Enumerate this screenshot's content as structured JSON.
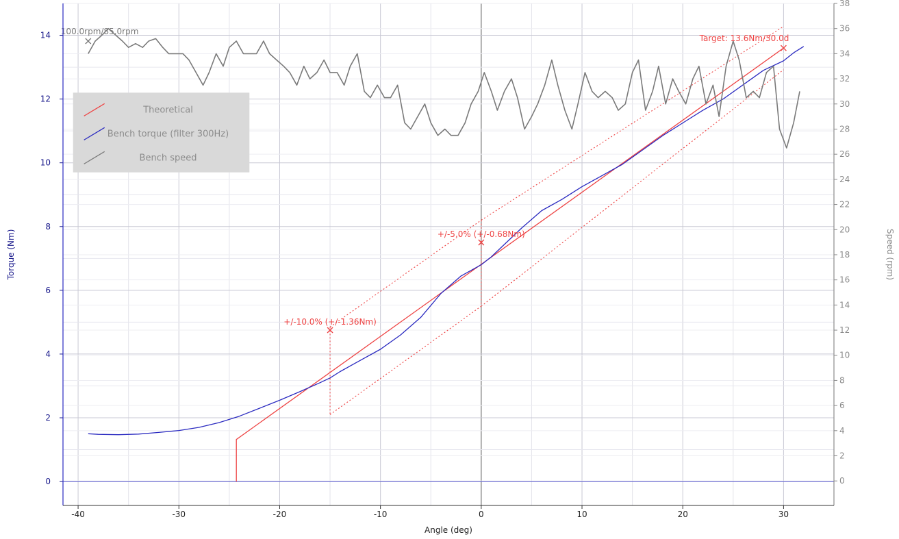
{
  "chart_data": {
    "type": "line",
    "xlabel": "Angle (deg)",
    "ylabel_left": "Torque (Nm)",
    "ylabel_right": "Speed (rpm)",
    "xlim": [
      -41.5,
      35.0
    ],
    "ylim_left": [
      -0.75,
      15.0
    ],
    "ylim_right": [
      -1.95,
      38.0
    ],
    "x_ticks": [
      -40,
      -30,
      -20,
      -10,
      0,
      10,
      20,
      30
    ],
    "y_left_ticks": [
      0,
      2,
      4,
      6,
      8,
      10,
      12,
      14
    ],
    "y_right_ticks": [
      0,
      2,
      4,
      6,
      8,
      10,
      12,
      14,
      16,
      18,
      20,
      22,
      24,
      26,
      28,
      30,
      32,
      34,
      36,
      38
    ],
    "grid": true,
    "legend_position": "top-left",
    "colors": {
      "theoretical": "#ee4444",
      "bench_torque": "#2a2ac0",
      "bench_speed": "#7a7a7a",
      "left_axis": "#1a1a8c",
      "right_axis": "#8a8a8a",
      "grid": "#c8c8d4"
    },
    "series": [
      {
        "name": "Theoretical",
        "axis": "left",
        "x": [
          -24.3,
          -24.3,
          30.0
        ],
        "y": [
          0.0,
          1.32,
          13.6
        ]
      },
      {
        "name": "Bench torque (filter 300Hz)",
        "axis": "left",
        "x": [
          -39.0,
          -38.0,
          -36.0,
          -34.0,
          -32.0,
          -30.0,
          -28.0,
          -26.0,
          -24.0,
          -22.0,
          -20.0,
          -18.0,
          -16.0,
          -15.0,
          -14.0,
          -12.0,
          -10.0,
          -8.0,
          -6.0,
          -4.0,
          -2.0,
          0.0,
          1.0,
          2.0,
          4.0,
          6.0,
          8.0,
          10.0,
          12.0,
          14.0,
          16.0,
          18.0,
          20.0,
          22.0,
          24.0,
          26.0,
          28.0,
          30.0,
          31.0,
          32.0
        ],
        "y": [
          1.5,
          1.48,
          1.47,
          1.49,
          1.54,
          1.6,
          1.7,
          1.85,
          2.05,
          2.3,
          2.55,
          2.82,
          3.1,
          3.25,
          3.45,
          3.8,
          4.15,
          4.6,
          5.15,
          5.9,
          6.45,
          6.8,
          7.05,
          7.35,
          7.95,
          8.5,
          8.85,
          9.25,
          9.6,
          9.95,
          10.4,
          10.85,
          11.25,
          11.65,
          12.0,
          12.45,
          12.9,
          13.2,
          13.45,
          13.65
        ]
      },
      {
        "name": "Bench speed",
        "axis": "right",
        "x": [
          -39.0,
          -38.3,
          -37.6,
          -37.0,
          -36.3,
          -35.6,
          -35.0,
          -34.3,
          -33.6,
          -33.0,
          -32.3,
          -31.6,
          -31.0,
          -30.3,
          -29.6,
          -29.0,
          -28.3,
          -27.6,
          -27.0,
          -26.3,
          -25.6,
          -25.0,
          -24.3,
          -23.6,
          -23.0,
          -22.3,
          -21.6,
          -21.0,
          -20.3,
          -19.6,
          -19.0,
          -18.3,
          -17.6,
          -17.0,
          -16.3,
          -15.6,
          -15.0,
          -14.3,
          -13.6,
          -13.0,
          -12.3,
          -11.6,
          -11.0,
          -10.3,
          -9.6,
          -9.0,
          -8.3,
          -7.6,
          -7.0,
          -6.3,
          -5.6,
          -5.0,
          -4.3,
          -3.6,
          -3.0,
          -2.3,
          -1.6,
          -1.0,
          -0.3,
          0.3,
          1.0,
          1.6,
          2.3,
          3.0,
          3.6,
          4.3,
          5.0,
          5.6,
          6.3,
          7.0,
          7.6,
          8.3,
          9.0,
          9.6,
          10.3,
          11.0,
          11.6,
          12.3,
          13.0,
          13.6,
          14.3,
          15.0,
          15.6,
          16.3,
          17.0,
          17.6,
          18.3,
          19.0,
          19.6,
          20.3,
          21.0,
          21.6,
          22.3,
          23.0,
          23.6,
          24.3,
          25.0,
          25.6,
          26.3,
          27.0,
          27.6,
          28.3,
          29.0,
          29.6,
          30.3,
          31.0,
          31.6
        ],
        "y": [
          34.0,
          35.0,
          35.5,
          36.0,
          35.5,
          35.0,
          34.5,
          34.8,
          34.5,
          35.0,
          35.2,
          34.5,
          34.0,
          34.0,
          34.0,
          33.5,
          32.5,
          31.5,
          32.5,
          34.0,
          33.0,
          34.5,
          35.0,
          34.0,
          34.0,
          34.0,
          35.0,
          34.0,
          33.5,
          33.0,
          32.5,
          31.5,
          33.0,
          32.0,
          32.5,
          33.5,
          32.5,
          32.5,
          31.5,
          33.0,
          34.0,
          31.0,
          30.5,
          31.5,
          30.5,
          30.5,
          31.5,
          28.5,
          28.0,
          29.0,
          30.0,
          28.5,
          27.5,
          28.0,
          27.5,
          27.5,
          28.5,
          30.0,
          31.0,
          32.5,
          31.0,
          29.5,
          31.0,
          32.0,
          30.5,
          28.0,
          29.0,
          30.0,
          31.5,
          33.5,
          31.5,
          29.5,
          28.0,
          30.0,
          32.5,
          31.0,
          30.5,
          31.0,
          30.5,
          29.5,
          30.0,
          32.5,
          33.5,
          29.5,
          31.0,
          33.0,
          30.0,
          32.0,
          31.0,
          30.0,
          32.0,
          33.0,
          30.0,
          31.5,
          29.0,
          33.0,
          35.0,
          33.5,
          30.5,
          31.0,
          30.5,
          32.5,
          33.0,
          28.0,
          26.5,
          28.5,
          31.0
        ]
      }
    ],
    "tolerance_bands": [
      {
        "label": "+/-5.0% (+/-0.68Nm)",
        "at_x": 0.0,
        "marker_y": 7.5,
        "style": "dotted",
        "segments": [
          [
            [
              0.0,
              8.2
            ],
            [
              30.0,
              14.28
            ]
          ],
          [
            [
              0.0,
              5.5
            ],
            [
              30.0,
              12.92
            ]
          ],
          [
            [
              0.0,
              8.2
            ],
            [
              0.0,
              5.5
            ]
          ]
        ]
      },
      {
        "label": "+/-10.0% (+/-1.36Nm)",
        "at_x": -15.0,
        "marker_y": 4.75,
        "style": "dotted",
        "segments": [
          [
            [
              -15.0,
              4.85
            ],
            [
              0.0,
              8.2
            ]
          ],
          [
            [
              -15.0,
              2.1
            ],
            [
              0.0,
              5.5
            ]
          ],
          [
            [
              -15.0,
              4.85
            ],
            [
              -15.0,
              2.1
            ]
          ]
        ]
      }
    ],
    "markers": [
      {
        "label": "Target: 13.6Nm/30.0d",
        "x": 30.0,
        "y": 13.6,
        "axis": "left",
        "color": "#ee4444"
      },
      {
        "label": "100.0rpm/85.0rpm",
        "x": -39.0,
        "y": 35.0,
        "axis": "right",
        "color": "#7a7a7a"
      }
    ],
    "legend": {
      "items": [
        {
          "label": "Theoretical",
          "color": "#ee4444"
        },
        {
          "label": "Bench torque (filter 300Hz)",
          "color": "#2a2ac0"
        },
        {
          "label": "Bench speed",
          "color": "#7a7a7a"
        }
      ],
      "background": "#d9d9d9"
    }
  }
}
